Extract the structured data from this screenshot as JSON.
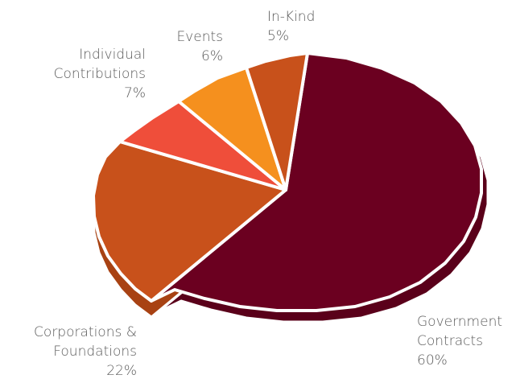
{
  "chart_data": {
    "type": "pie",
    "style": "3d-exploded-shadow",
    "slices": [
      {
        "id": "government",
        "label_lines": [
          "Government",
          "Contracts"
        ],
        "value_label": "60%",
        "value": 60,
        "color": "#6b0020",
        "edge_color": "#5a001a"
      },
      {
        "id": "corporations",
        "label_lines": [
          "Corporations &",
          "Foundations"
        ],
        "value_label": "22%",
        "value": 22,
        "color": "#c8511b",
        "edge_color": "#a84213"
      },
      {
        "id": "individual",
        "label_lines": [
          "Individual",
          "Contributions"
        ],
        "value_label": "7%",
        "value": 7,
        "color": "#ef4e3a",
        "edge_color": "#c43a2a"
      },
      {
        "id": "events",
        "label_lines": [
          "Events"
        ],
        "value_label": "6%",
        "value": 6,
        "color": "#f5901e",
        "edge_color": "#d07512"
      },
      {
        "id": "inkind",
        "label_lines": [
          "In-Kind"
        ],
        "value_label": "5%",
        "value": 5,
        "color": "#c8511b",
        "edge_color": "#a84213"
      }
    ]
  }
}
